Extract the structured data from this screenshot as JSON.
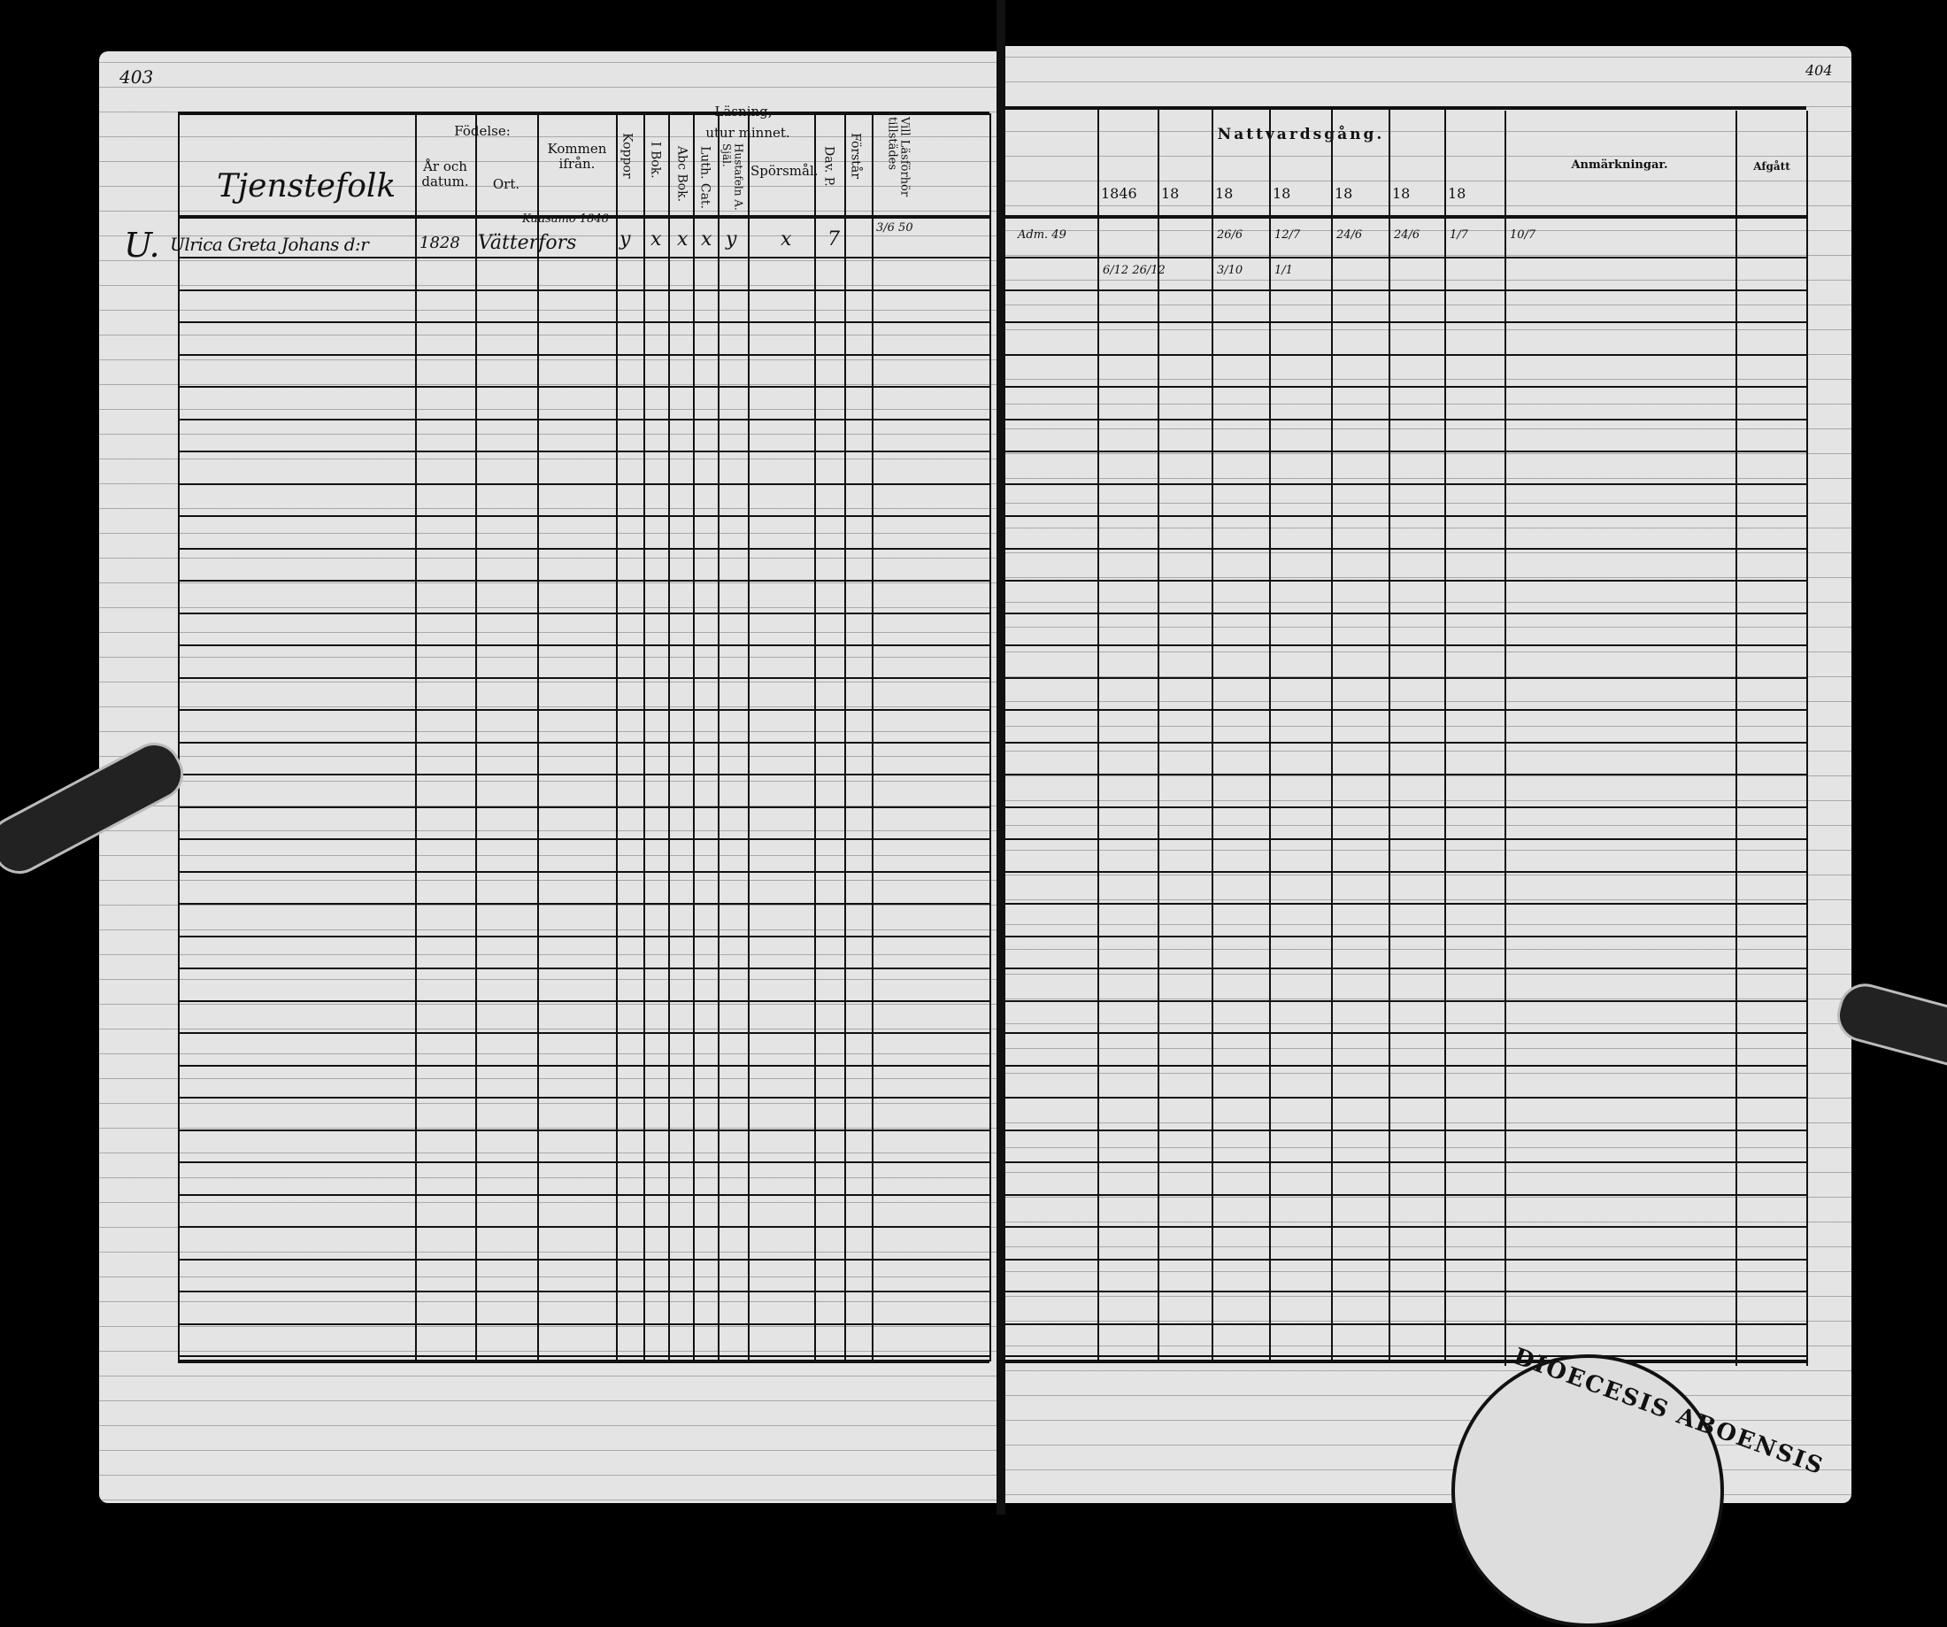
{
  "left_page": {
    "page_number": "403",
    "section_title": "Tjenstefolk",
    "headers": {
      "fodelse": "Födelse:",
      "ar_och_datum": "År och datum.",
      "ort": "Ort.",
      "kommen_ifran": "Kommen ifrån.",
      "koppor": "Koppor",
      "lasning": "Läsning,",
      "i_bok": "I Bok.",
      "utur_minnet": "utur minnet.",
      "abc_bok": "Abc Bok.",
      "luth_cat": "Luth. Cat.",
      "hush_a_sjal": "Hustafeln A. Själ.",
      "sporsmal": "Spörsmål.",
      "dav_p": "Dav. P.",
      "forstar": "Förstår",
      "vill_lasforhor": "Vill Läsförhör tillstädes"
    },
    "entry": {
      "marker": "U.",
      "name": "Ulrica Greta Johans d:r",
      "birth": "1828",
      "place": "Vätterfors",
      "came_from": "Kuusamo 1848",
      "marks": [
        "y",
        "x",
        "x",
        "x",
        "y",
        "x",
        "7"
      ],
      "note": "3/6 50"
    }
  },
  "right_page": {
    "page_number": "404",
    "headers": {
      "nattvardsgang": "Nattvardsgång.",
      "years": [
        "1846",
        "18",
        "18",
        "18",
        "18",
        "18",
        "18"
      ],
      "anmarkningar": "Anmärkningar.",
      "afgatt": "Afgått"
    },
    "entry_row1": {
      "first": "Adm. 49",
      "dates": [
        "",
        "",
        "26/6",
        "12/7",
        "24/6",
        "24/6",
        "1/7",
        "10/7"
      ]
    },
    "entry_row2": {
      "dates": [
        "6/12 26/12",
        "",
        "3/10",
        "1/1"
      ]
    },
    "stamp_text": "DIOECESIS ABOENSIS"
  }
}
